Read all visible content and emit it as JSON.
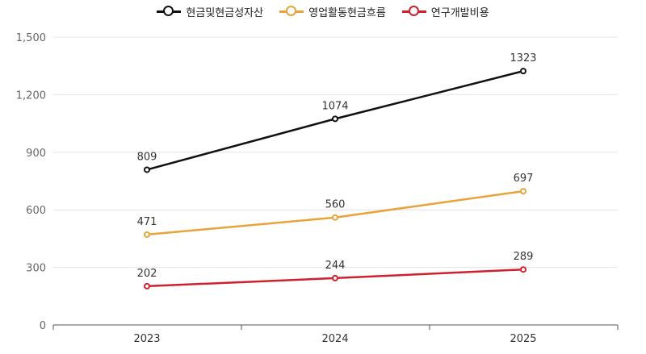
{
  "chart_data": {
    "type": "line",
    "categories": [
      "2023",
      "2024",
      "2025"
    ],
    "series": [
      {
        "name": "현금및현금성자산",
        "values": [
          809,
          1074,
          1323
        ],
        "color": "#111111"
      },
      {
        "name": "영업활동현금흐름",
        "values": [
          471,
          560,
          697
        ],
        "color": "#E8A33A"
      },
      {
        "name": "연구개발비용",
        "values": [
          202,
          244,
          289
        ],
        "color": "#D0202E"
      }
    ],
    "ylim": [
      0,
      1500
    ],
    "yticks": [
      "0",
      "300",
      "600",
      "900",
      "1,200",
      "1,500"
    ],
    "grid": true,
    "legend": "top-center",
    "title": "",
    "xlabel": "",
    "ylabel": ""
  }
}
